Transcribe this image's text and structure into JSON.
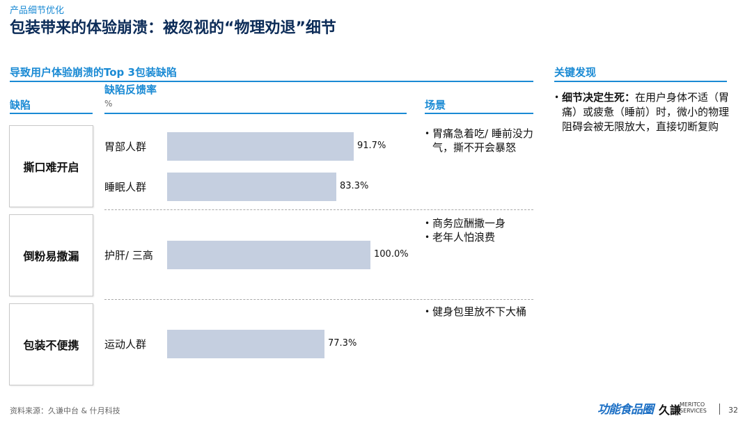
{
  "header": {
    "section": "产品细节优化",
    "title": "包装带来的体验崩溃：被忽视的“物理劝退”细节"
  },
  "left_panel": {
    "heading": "导致用户体验崩溃的Top 3包装缺陷",
    "col_defect": "缺陷",
    "col_rate": "缺陷反馈率",
    "col_rate_unit": "%",
    "col_scene": "场景"
  },
  "right_panel": {
    "heading": "关键发现",
    "finding_bold": "细节决定生死：",
    "finding_text": "在用户身体不适（胃痛）或疲惫（睡前）时，微小的物理阻碍会被无限放大，直接切断复购"
  },
  "chart_data": {
    "type": "bar",
    "orientation": "horizontal",
    "title": "导致用户体验崩溃的Top 3包装缺陷",
    "xlabel": "缺陷反馈率",
    "unit": "%",
    "xlim": [
      0,
      100
    ],
    "groups": [
      {
        "defect": "撕口难开启",
        "scenarios": [
          "胃痛急着吃/ 睡前没力气，撕不开会暴怒"
        ],
        "bars": [
          {
            "category": "胃部人群",
            "value": 91.7,
            "label": "91.7%"
          },
          {
            "category": "睡眠人群",
            "value": 83.3,
            "label": "83.3%"
          }
        ]
      },
      {
        "defect": "倒粉易撒漏",
        "scenarios": [
          "商务应酬撒一身",
          "老年人怕浪费"
        ],
        "bars": [
          {
            "category": "护肝/ 三高",
            "value": 100.0,
            "label": "100.0%"
          }
        ]
      },
      {
        "defect": "包装不便携",
        "scenarios": [
          "健身包里放不下大桶"
        ],
        "bars": [
          {
            "category": "运动人群",
            "value": 77.3,
            "label": "77.3%"
          }
        ]
      }
    ]
  },
  "footer": {
    "source": "资料来源：久谦中台 & 什月科技",
    "logo_brand": "功能食品圈",
    "logo_company": "久謙",
    "logo_company_en_1": "MERITCO",
    "logo_company_en_2": "SERVICES",
    "page_number": "32"
  },
  "colors": {
    "accent": "#1a8ad4",
    "title": "#0b2b57",
    "bar": "#c5cfe0"
  }
}
